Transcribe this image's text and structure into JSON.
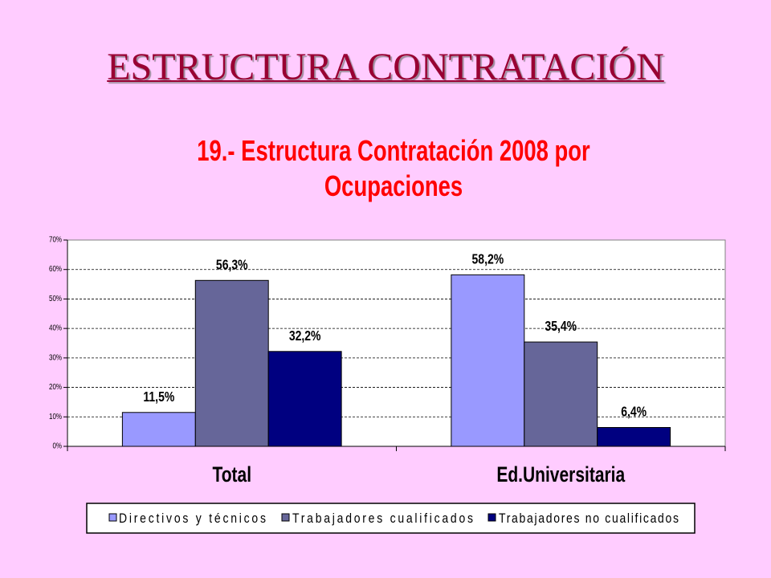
{
  "slide": {
    "title": "ESTRUCTURA CONTRATACIÓN",
    "title_color": "#990033",
    "background": "#FFCCFF"
  },
  "chart_data": {
    "type": "bar",
    "title": "19.- Estructura Contratación 2008 por Ocupaciones",
    "title_color": "#FF0000",
    "categories": [
      "Total",
      "Ed.Universitaria"
    ],
    "series": [
      {
        "name": "Directivos y técnicos",
        "values": [
          11.5,
          58.2
        ],
        "labels": [
          "11,5%",
          "58,2%"
        ],
        "color": "#9999FF"
      },
      {
        "name": "Trabajadores cualificados",
        "values": [
          56.3,
          35.4
        ],
        "labels": [
          "56,3%",
          "35,4%"
        ],
        "color": "#666699"
      },
      {
        "name": "Trabajadores no cualificados",
        "values": [
          32.2,
          6.4
        ],
        "labels": [
          "32,2%",
          "6,4%"
        ],
        "color": "#000080"
      }
    ],
    "ylim": [
      0,
      70
    ],
    "y_ticks": [
      0,
      10,
      20,
      30,
      40,
      50,
      60,
      70
    ],
    "y_tick_labels": [
      "0%",
      "10%",
      "20%",
      "30%",
      "40%",
      "50%",
      "60%",
      "70%"
    ],
    "grid": true,
    "legend_position": "bottom"
  }
}
